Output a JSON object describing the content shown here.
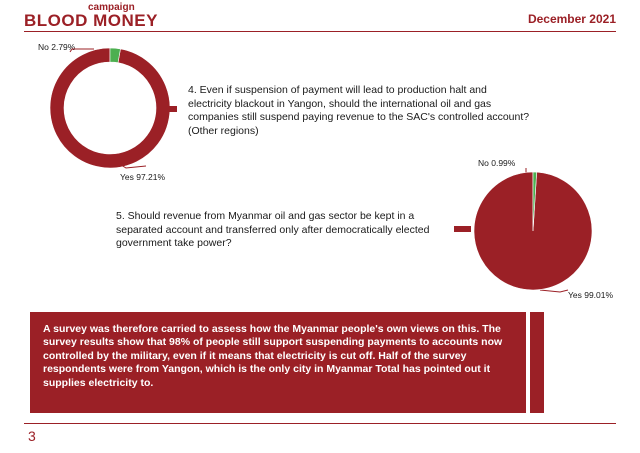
{
  "header": {
    "brand_small": "campaign",
    "brand_big": "BLOOD MONEY",
    "date": "December 2021"
  },
  "colors": {
    "accent": "#9b2026",
    "yes": "#9b2026",
    "no": "#4caf50"
  },
  "questions": [
    {
      "text": "4. Even if suspension of payment will lead to production halt and electricity blackout in Yangon, should the international oil and gas companies still suspend paying revenue to the SAC's controlled account? (Other regions)"
    },
    {
      "text": "5. Should revenue from Myanmar oil and gas sector be kept in a separated account and transferred only after democratically elected government take power?"
    }
  ],
  "chart_data": [
    {
      "type": "pie",
      "variant": "donut",
      "slices": [
        {
          "label": "Yes 97.21%",
          "category": "Yes",
          "value": 97.21
        },
        {
          "label": "No 2.79%",
          "category": "No",
          "value": 2.79
        }
      ]
    },
    {
      "type": "pie",
      "slices": [
        {
          "label": "Yes 99.01%",
          "category": "Yes",
          "value": 99.01
        },
        {
          "label": "No 0.99%",
          "category": "No",
          "value": 0.99
        }
      ]
    }
  ],
  "summary": {
    "text": "A survey was therefore carried to assess how the Myanmar people's own views on this. The survey results show that 98% of people still support suspending payments to accounts now controlled by the military, even if it means that electricity is cut off. Half of the survey respondents were from Yangon, which is the only city in Myanmar Total has pointed out it supplies electricity to."
  },
  "page_number": "3"
}
